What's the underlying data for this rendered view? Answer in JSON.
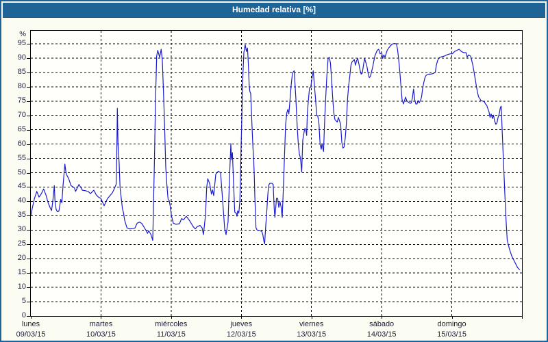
{
  "window": {
    "title": "Humedad relativa [%]"
  },
  "colors": {
    "frame_border": "#226397",
    "titlebar_bg": "#1f6496",
    "panel_bg": "#fcfdf2",
    "plot_bg": "#fffffc",
    "grid": "#000000",
    "line": "#1a1ace",
    "label_text": "#1c1c3c"
  },
  "chart_data": {
    "type": "line",
    "title": "Humedad relativa [%]",
    "grid": "dashed",
    "legend": "none",
    "line_color": "#1a1ace",
    "y_axis": {
      "unit": "%",
      "ticks": [
        0,
        5,
        10,
        15,
        20,
        25,
        30,
        35,
        40,
        45,
        50,
        55,
        60,
        65,
        70,
        75,
        80,
        85,
        90,
        95
      ],
      "range_top_pct": 100
    },
    "x_axis": {
      "range_days": [
        0,
        7
      ],
      "days": [
        {
          "name": "lunes",
          "date": "09/03/15"
        },
        {
          "name": "martes",
          "date": "10/03/15"
        },
        {
          "name": "miércoles",
          "date": "11/03/15"
        },
        {
          "name": "jueves",
          "date": "12/03/15"
        },
        {
          "name": "viernes",
          "date": "13/03/15"
        },
        {
          "name": "sábado",
          "date": "14/03/15"
        },
        {
          "name": "domingo",
          "date": "15/03/15"
        }
      ]
    },
    "points": [
      [
        0.0,
        35
      ],
      [
        0.02,
        37.5
      ],
      [
        0.052,
        41
      ],
      [
        0.085,
        43.5
      ],
      [
        0.117,
        41.5
      ],
      [
        0.146,
        42.5
      ],
      [
        0.183,
        44.3
      ],
      [
        0.215,
        42.3
      ],
      [
        0.247,
        39.5
      ],
      [
        0.28,
        37.5
      ],
      [
        0.296,
        36.8
      ],
      [
        0.312,
        39.9
      ],
      [
        0.335,
        45.5
      ],
      [
        0.345,
        40
      ],
      [
        0.361,
        37.2
      ],
      [
        0.378,
        36.4
      ],
      [
        0.4,
        36.6
      ],
      [
        0.427,
        40.7
      ],
      [
        0.442,
        39.5
      ],
      [
        0.459,
        45.5
      ],
      [
        0.485,
        53
      ],
      [
        0.498,
        50.6
      ],
      [
        0.508,
        49.4
      ],
      [
        0.54,
        47.9
      ],
      [
        0.573,
        45.5
      ],
      [
        0.622,
        44.7
      ],
      [
        0.638,
        43.5
      ],
      [
        0.686,
        45.9
      ],
      [
        0.735,
        43.9
      ],
      [
        0.781,
        43.7
      ],
      [
        0.817,
        43.5
      ],
      [
        0.849,
        42.7
      ],
      [
        0.898,
        43.9
      ],
      [
        0.931,
        42.3
      ],
      [
        0.963,
        41.5
      ],
      [
        0.996,
        41.1
      ],
      [
        1.045,
        38.5
      ],
      [
        1.093,
        41
      ],
      [
        1.162,
        43
      ],
      [
        1.191,
        44.5
      ],
      [
        1.216,
        46
      ],
      [
        1.224,
        55
      ],
      [
        1.233,
        72.5
      ],
      [
        1.243,
        60
      ],
      [
        1.257,
        54
      ],
      [
        1.272,
        44.7
      ],
      [
        1.305,
        37.5
      ],
      [
        1.321,
        36
      ],
      [
        1.337,
        33.5
      ],
      [
        1.37,
        30.8
      ],
      [
        1.403,
        30.4
      ],
      [
        1.452,
        30.5
      ],
      [
        1.484,
        30.7
      ],
      [
        1.516,
        32.4
      ],
      [
        1.549,
        32.8
      ],
      [
        1.582,
        32.3
      ],
      [
        1.614,
        31
      ],
      [
        1.647,
        29.6
      ],
      [
        1.663,
        28.8
      ],
      [
        1.679,
        29.8
      ],
      [
        1.712,
        28.4
      ],
      [
        1.738,
        26.4
      ],
      [
        1.76,
        52.6
      ],
      [
        1.777,
        74.8
      ],
      [
        1.793,
        90.7
      ],
      [
        1.809,
        92.7
      ],
      [
        1.835,
        90.3
      ],
      [
        1.858,
        93.1
      ],
      [
        1.874,
        89.1
      ],
      [
        1.891,
        78
      ],
      [
        1.907,
        66.1
      ],
      [
        1.923,
        51.8
      ],
      [
        1.94,
        45.5
      ],
      [
        1.956,
        40.7
      ],
      [
        1.972,
        40.3
      ],
      [
        1.989,
        38
      ],
      [
        2.004,
        35
      ],
      [
        2.031,
        32.4
      ],
      [
        2.07,
        32
      ],
      [
        2.119,
        32.2
      ],
      [
        2.148,
        34
      ],
      [
        2.177,
        33.6
      ],
      [
        2.216,
        34.8
      ],
      [
        2.265,
        33.2
      ],
      [
        2.314,
        31.2
      ],
      [
        2.343,
        30.4
      ],
      [
        2.372,
        31.2
      ],
      [
        2.411,
        31.6
      ],
      [
        2.441,
        30.8
      ],
      [
        2.46,
        28.4
      ],
      [
        2.49,
        35.2
      ],
      [
        2.506,
        44.7
      ],
      [
        2.522,
        47.9
      ],
      [
        2.548,
        46.3
      ],
      [
        2.574,
        42.5
      ],
      [
        2.59,
        44
      ],
      [
        2.607,
        42
      ],
      [
        2.636,
        49.5
      ],
      [
        2.672,
        50.5
      ],
      [
        2.704,
        50
      ],
      [
        2.733,
        40.7
      ],
      [
        2.763,
        30.4
      ],
      [
        2.782,
        28.4
      ],
      [
        2.811,
        32.8
      ],
      [
        2.834,
        49.8
      ],
      [
        2.851,
        60.2
      ],
      [
        2.86,
        54.6
      ],
      [
        2.873,
        57
      ],
      [
        2.893,
        44.3
      ],
      [
        2.906,
        36.3
      ],
      [
        2.929,
        35.8
      ],
      [
        2.938,
        34.8
      ],
      [
        2.948,
        36.7
      ],
      [
        2.965,
        35.9
      ],
      [
        2.98,
        40.3
      ],
      [
        2.997,
        59.4
      ],
      [
        3.007,
        68.9
      ],
      [
        3.023,
        84.4
      ],
      [
        3.036,
        91.9
      ],
      [
        3.056,
        94.7
      ],
      [
        3.072,
        92.3
      ],
      [
        3.088,
        93.5
      ],
      [
        3.101,
        87.9
      ],
      [
        3.111,
        80.8
      ],
      [
        3.121,
        78.4
      ],
      [
        3.134,
        77.6
      ],
      [
        3.143,
        72.1
      ],
      [
        3.153,
        65.7
      ],
      [
        3.166,
        58.6
      ],
      [
        3.176,
        55
      ],
      [
        3.186,
        48.3
      ],
      [
        3.192,
        41.9
      ],
      [
        3.202,
        35.6
      ],
      [
        3.209,
        30.8
      ],
      [
        3.225,
        30
      ],
      [
        3.258,
        29.8
      ],
      [
        3.29,
        29.6
      ],
      [
        3.307,
        28.4
      ],
      [
        3.322,
        26
      ],
      [
        3.332,
        25.2
      ],
      [
        3.349,
        31.6
      ],
      [
        3.362,
        36.3
      ],
      [
        3.372,
        40.3
      ],
      [
        3.388,
        45.5
      ],
      [
        3.405,
        46.3
      ],
      [
        3.437,
        46.3
      ],
      [
        3.454,
        45.9
      ],
      [
        3.469,
        37.5
      ],
      [
        3.479,
        34.4
      ],
      [
        3.502,
        41.1
      ],
      [
        3.518,
        41.1
      ],
      [
        3.534,
        37.9
      ],
      [
        3.551,
        39.9
      ],
      [
        3.567,
        38
      ],
      [
        3.583,
        34.4
      ],
      [
        3.6,
        44.7
      ],
      [
        3.615,
        55.8
      ],
      [
        3.632,
        66.9
      ],
      [
        3.648,
        70.9
      ],
      [
        3.664,
        72.1
      ],
      [
        3.678,
        70.5
      ],
      [
        3.697,
        76.4
      ],
      [
        3.713,
        81.2
      ],
      [
        3.729,
        84.8
      ],
      [
        3.754,
        85.6
      ],
      [
        3.778,
        75.6
      ],
      [
        3.795,
        66.9
      ],
      [
        3.811,
        60.2
      ],
      [
        3.827,
        56.6
      ],
      [
        3.844,
        55
      ],
      [
        3.86,
        50.2
      ],
      [
        3.876,
        61.4
      ],
      [
        3.902,
        65.3
      ],
      [
        3.918,
        65.3
      ],
      [
        3.932,
        63
      ],
      [
        3.941,
        70.9
      ],
      [
        3.957,
        75.6
      ],
      [
        3.973,
        79.6
      ],
      [
        3.99,
        79.9
      ],
      [
        4.006,
        82.8
      ],
      [
        4.025,
        85.6
      ],
      [
        4.042,
        80.4
      ],
      [
        4.058,
        75.6
      ],
      [
        4.074,
        70.1
      ],
      [
        4.091,
        69.7
      ],
      [
        4.107,
        66.9
      ],
      [
        4.123,
        59.8
      ],
      [
        4.139,
        58.2
      ],
      [
        4.149,
        60.2
      ],
      [
        4.172,
        57.4
      ],
      [
        4.188,
        68.5
      ],
      [
        4.205,
        77.2
      ],
      [
        4.221,
        84.8
      ],
      [
        4.237,
        89.9
      ],
      [
        4.254,
        90.3
      ],
      [
        4.27,
        88.3
      ],
      [
        4.286,
        82.8
      ],
      [
        4.302,
        76.4
      ],
      [
        4.318,
        70.9
      ],
      [
        4.335,
        68.5
      ],
      [
        4.367,
        67.7
      ],
      [
        4.384,
        69.3
      ],
      [
        4.416,
        66.9
      ],
      [
        4.432,
        60.6
      ],
      [
        4.449,
        58.6
      ],
      [
        4.465,
        59
      ],
      [
        4.481,
        62.1
      ],
      [
        4.497,
        66.9
      ],
      [
        4.513,
        75.6
      ],
      [
        4.53,
        80.4
      ],
      [
        4.546,
        83.6
      ],
      [
        4.562,
        87.5
      ],
      [
        4.578,
        88.7
      ],
      [
        4.611,
        89.5
      ],
      [
        4.627,
        87.5
      ],
      [
        4.643,
        89.1
      ],
      [
        4.659,
        89.9
      ],
      [
        4.676,
        87.9
      ],
      [
        4.692,
        85.9
      ],
      [
        4.708,
        84.4
      ],
      [
        4.724,
        84.8
      ],
      [
        4.741,
        87.5
      ],
      [
        4.757,
        89.9
      ],
      [
        4.79,
        87.2
      ],
      [
        4.806,
        84.8
      ],
      [
        4.823,
        83.2
      ],
      [
        4.839,
        83.6
      ],
      [
        4.871,
        86.7
      ],
      [
        4.903,
        90.7
      ],
      [
        4.936,
        92.7
      ],
      [
        4.959,
        93.1
      ],
      [
        4.978,
        91.5
      ],
      [
        5.001,
        91.9
      ],
      [
        5.015,
        89.9
      ],
      [
        5.031,
        91.1
      ],
      [
        5.047,
        90.3
      ],
      [
        5.079,
        92.7
      ],
      [
        5.112,
        93.9
      ],
      [
        5.145,
        94.8
      ],
      [
        5.177,
        95.1
      ],
      [
        5.21,
        95
      ],
      [
        5.226,
        93.1
      ],
      [
        5.242,
        89.9
      ],
      [
        5.259,
        85.2
      ],
      [
        5.275,
        80.4
      ],
      [
        5.291,
        75.6
      ],
      [
        5.311,
        74
      ],
      [
        5.34,
        76.4
      ],
      [
        5.357,
        75.2
      ],
      [
        5.373,
        74.8
      ],
      [
        5.406,
        74.2
      ],
      [
        5.422,
        74.4
      ],
      [
        5.438,
        76
      ],
      [
        5.455,
        79.2
      ],
      [
        5.471,
        75.6
      ],
      [
        5.487,
        74
      ],
      [
        5.504,
        74
      ],
      [
        5.52,
        75.2
      ],
      [
        5.536,
        74.4
      ],
      [
        5.553,
        75.2
      ],
      [
        5.569,
        76.4
      ],
      [
        5.585,
        79.6
      ],
      [
        5.602,
        81.6
      ],
      [
        5.618,
        83.2
      ],
      [
        5.634,
        84
      ],
      [
        5.667,
        84.4
      ],
      [
        5.699,
        84.4
      ],
      [
        5.732,
        84.6
      ],
      [
        5.764,
        85
      ],
      [
        5.78,
        87.5
      ],
      [
        5.797,
        89.1
      ],
      [
        5.813,
        89.9
      ],
      [
        5.829,
        90.3
      ],
      [
        5.861,
        90.5
      ],
      [
        5.894,
        90.7
      ],
      [
        5.926,
        91.1
      ],
      [
        5.975,
        91.5
      ],
      [
        6.007,
        91.5
      ],
      [
        6.04,
        92.3
      ],
      [
        6.073,
        92.7
      ],
      [
        6.105,
        93.1
      ],
      [
        6.138,
        92.3
      ],
      [
        6.17,
        91.9
      ],
      [
        6.203,
        91.9
      ],
      [
        6.219,
        90.3
      ],
      [
        6.236,
        91.1
      ],
      [
        6.268,
        90.7
      ],
      [
        6.284,
        89.1
      ],
      [
        6.3,
        87.5
      ],
      [
        6.317,
        85.2
      ],
      [
        6.333,
        82.8
      ],
      [
        6.349,
        80.4
      ],
      [
        6.366,
        78
      ],
      [
        6.382,
        76.4
      ],
      [
        6.398,
        76
      ],
      [
        6.414,
        75.2
      ],
      [
        6.463,
        74.8
      ],
      [
        6.48,
        74
      ],
      [
        6.496,
        73.6
      ],
      [
        6.512,
        72.5
      ],
      [
        6.529,
        71.3
      ],
      [
        6.545,
        69.3
      ],
      [
        6.561,
        70.5
      ],
      [
        6.578,
        68.9
      ],
      [
        6.594,
        70.1
      ],
      [
        6.61,
        68.1
      ],
      [
        6.627,
        66.9
      ],
      [
        6.643,
        67.3
      ],
      [
        6.659,
        69.3
      ],
      [
        6.676,
        70.5
      ],
      [
        6.692,
        72.8
      ],
      [
        6.704,
        73.2
      ],
      [
        6.709,
        70.1
      ],
      [
        6.725,
        60.6
      ],
      [
        6.741,
        51
      ],
      [
        6.758,
        41.5
      ],
      [
        6.774,
        32.8
      ],
      [
        6.79,
        26.4
      ],
      [
        6.807,
        24.8
      ],
      [
        6.823,
        23.2
      ],
      [
        6.839,
        22.1
      ],
      [
        6.855,
        20.9
      ],
      [
        6.872,
        20.1
      ],
      [
        6.888,
        19.3
      ],
      [
        6.904,
        18.5
      ],
      [
        6.921,
        17.7
      ],
      [
        6.937,
        16.9
      ],
      [
        6.953,
        16.5
      ],
      [
        6.97,
        16.1
      ]
    ]
  }
}
